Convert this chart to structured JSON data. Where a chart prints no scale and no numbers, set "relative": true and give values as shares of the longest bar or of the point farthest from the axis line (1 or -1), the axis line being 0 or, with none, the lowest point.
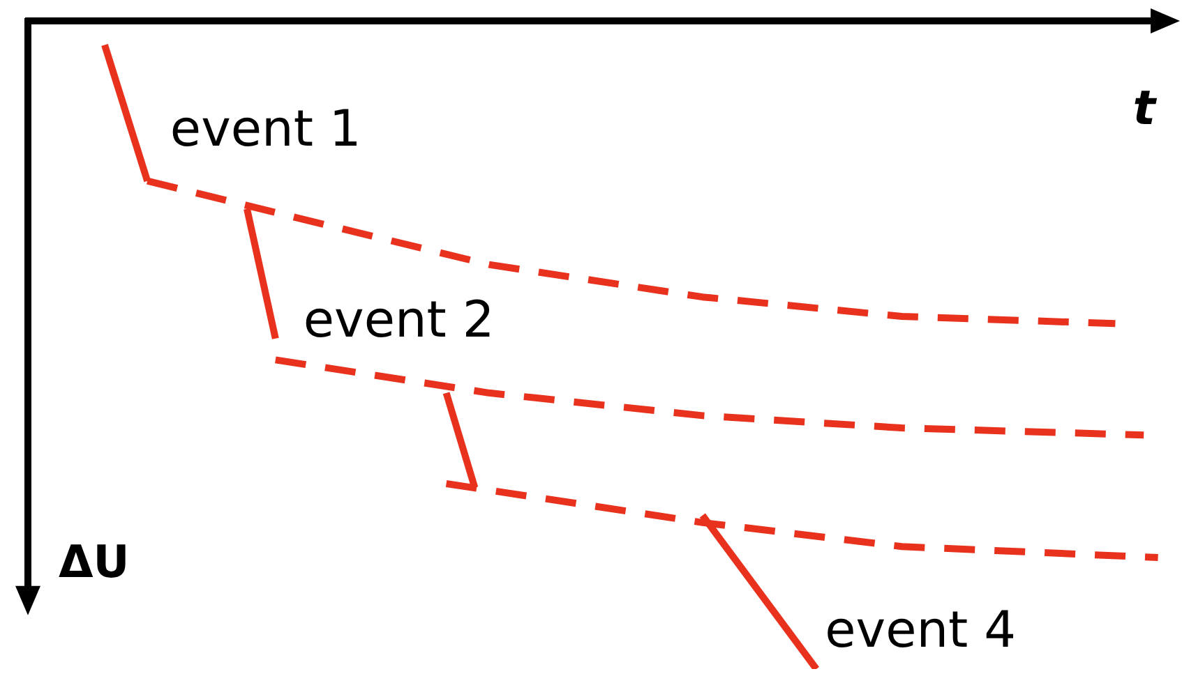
{
  "chart_data": {
    "type": "line",
    "relative": true,
    "xlabel": "t",
    "ylabel": "ΔU",
    "legend": false,
    "marker": "none",
    "tick_labels": false,
    "categories": [
      null,
      null,
      null,
      null,
      null,
      null,
      null,
      null,
      null,
      null,
      null,
      null,
      null,
      null,
      null,
      null,
      null,
      null,
      null,
      null,
      null,
      null,
      null,
      null,
      null,
      null,
      null,
      null,
      null,
      null,
      null,
      null,
      null,
      null,
      null,
      null,
      null,
      null,
      null,
      null,
      null,
      null,
      null,
      null,
      null,
      null,
      null,
      null,
      null,
      null,
      null,
      null,
      null,
      null,
      null,
      null,
      null,
      null,
      null,
      null,
      null,
      null,
      null,
      null,
      null,
      null,
      null,
      null,
      null,
      null,
      null,
      null,
      null,
      null,
      null,
      null,
      null,
      null,
      null,
      null,
      null
    ],
    "series": [
      {
        "color": "#e8321e",
        "line_style": "solid",
        "values": [
          null,
          null,
          null,
          null,
          null,
          -0.037,
          null,
          null,
          -0.247,
          null,
          null,
          null,
          null,
          null,
          null,
          null,
          null,
          null,
          null,
          null,
          null,
          null,
          null,
          null,
          null,
          null,
          null,
          null,
          null,
          null,
          null,
          null,
          null,
          null,
          null,
          null,
          null,
          null,
          null,
          null,
          null,
          null,
          null,
          null,
          null,
          null,
          null,
          null,
          null,
          null,
          null,
          null,
          null,
          null,
          null,
          null,
          null,
          null,
          null,
          null,
          null,
          null,
          null,
          null,
          null,
          null,
          null,
          null,
          null,
          null,
          null,
          null,
          null,
          null,
          null,
          null,
          null,
          null,
          null,
          null,
          null
        ]
      },
      {
        "color": "#e8321e",
        "line_style": "dashed",
        "values": [
          null,
          null,
          null,
          null,
          null,
          null,
          null,
          null,
          -0.247,
          null,
          null,
          null,
          null,
          null,
          null,
          null,
          null,
          null,
          -0.301,
          null,
          null,
          null,
          null,
          null,
          null,
          null,
          null,
          null,
          null,
          null,
          null,
          null,
          -0.376,
          null,
          null,
          null,
          null,
          null,
          null,
          null,
          null,
          null,
          null,
          null,
          null,
          null,
          null,
          -0.426,
          null,
          null,
          null,
          null,
          null,
          null,
          null,
          null,
          null,
          null,
          null,
          null,
          null,
          -0.456,
          null,
          null,
          null,
          null,
          null,
          null,
          null,
          null,
          null,
          null,
          null,
          null,
          null,
          null,
          -0.467,
          null,
          null,
          null,
          null
        ]
      },
      {
        "color": "#e8321e",
        "line_style": "solid",
        "values": [
          null,
          null,
          null,
          null,
          null,
          null,
          null,
          null,
          null,
          null,
          null,
          null,
          null,
          null,
          null,
          -0.29,
          null,
          -0.49,
          null,
          null,
          null,
          null,
          null,
          null,
          null,
          null,
          null,
          null,
          null,
          null,
          null,
          null,
          null,
          null,
          null,
          null,
          null,
          null,
          null,
          null,
          null,
          null,
          null,
          null,
          null,
          null,
          null,
          null,
          null,
          null,
          null,
          null,
          null,
          null,
          null,
          null,
          null,
          null,
          null,
          null,
          null,
          null,
          null,
          null,
          null,
          null,
          null,
          null,
          null,
          null,
          null,
          null,
          null,
          null,
          null,
          null,
          null,
          null,
          null,
          null,
          null
        ]
      },
      {
        "color": "#e8321e",
        "line_style": "dashed",
        "values": [
          null,
          null,
          null,
          null,
          null,
          null,
          null,
          null,
          null,
          null,
          null,
          null,
          null,
          null,
          null,
          null,
          null,
          -0.523,
          null,
          null,
          null,
          null,
          null,
          null,
          null,
          null,
          null,
          null,
          null,
          null,
          null,
          null,
          -0.574,
          null,
          null,
          null,
          null,
          null,
          null,
          null,
          null,
          null,
          null,
          null,
          null,
          null,
          null,
          -0.609,
          null,
          null,
          null,
          null,
          null,
          null,
          null,
          null,
          null,
          null,
          null,
          null,
          null,
          -0.628,
          null,
          null,
          null,
          null,
          null,
          null,
          null,
          null,
          null,
          null,
          null,
          null,
          null,
          null,
          null,
          null,
          -0.639,
          null,
          null
        ]
      },
      {
        "color": "#e8321e",
        "line_style": "solid",
        "values": [
          null,
          null,
          null,
          null,
          null,
          null,
          null,
          null,
          null,
          null,
          null,
          null,
          null,
          null,
          null,
          null,
          null,
          null,
          null,
          null,
          null,
          null,
          null,
          null,
          null,
          null,
          null,
          null,
          null,
          -0.574,
          null,
          -0.72,
          null,
          null,
          null,
          null,
          null,
          null,
          null,
          null,
          null,
          null,
          null,
          null,
          null,
          null,
          null,
          null,
          null,
          null,
          null,
          null,
          null,
          null,
          null,
          null,
          null,
          null,
          null,
          null,
          null,
          null,
          null,
          null,
          null,
          null,
          null,
          null,
          null,
          null,
          null,
          null,
          null,
          null,
          null,
          null,
          null,
          null,
          null,
          null,
          null
        ]
      },
      {
        "color": "#e8321e",
        "line_style": "dashed",
        "values": [
          null,
          null,
          null,
          null,
          null,
          null,
          null,
          null,
          null,
          null,
          null,
          null,
          null,
          null,
          null,
          null,
          null,
          null,
          null,
          null,
          null,
          null,
          null,
          null,
          null,
          null,
          null,
          null,
          null,
          -0.714,
          null,
          null,
          null,
          null,
          null,
          null,
          null,
          null,
          null,
          null,
          null,
          null,
          null,
          null,
          null,
          null,
          null,
          -0.774,
          null,
          null,
          null,
          null,
          null,
          null,
          null,
          null,
          null,
          null,
          null,
          null,
          null,
          -0.811,
          null,
          null,
          null,
          null,
          null,
          null,
          null,
          null,
          null,
          null,
          null,
          null,
          null,
          null,
          null,
          null,
          null,
          -0.828,
          null
        ]
      },
      {
        "color": "#e8321e",
        "line_style": "solid",
        "values": [
          null,
          null,
          null,
          null,
          null,
          null,
          null,
          null,
          null,
          null,
          null,
          null,
          null,
          null,
          null,
          null,
          null,
          null,
          null,
          null,
          null,
          null,
          null,
          null,
          null,
          null,
          null,
          null,
          null,
          null,
          null,
          null,
          null,
          null,
          null,
          null,
          null,
          null,
          null,
          null,
          null,
          null,
          null,
          null,
          null,
          null,
          null,
          -0.763,
          null,
          null,
          null,
          null,
          null,
          null,
          null,
          -1,
          null,
          null,
          null,
          null,
          null,
          null,
          null,
          null,
          null,
          null,
          null,
          null,
          null,
          null,
          null,
          null,
          null,
          null,
          null,
          null,
          null,
          null,
          null,
          null,
          null
        ]
      }
    ],
    "annotations": [
      "event 1",
      "event 2",
      "event 4"
    ]
  }
}
